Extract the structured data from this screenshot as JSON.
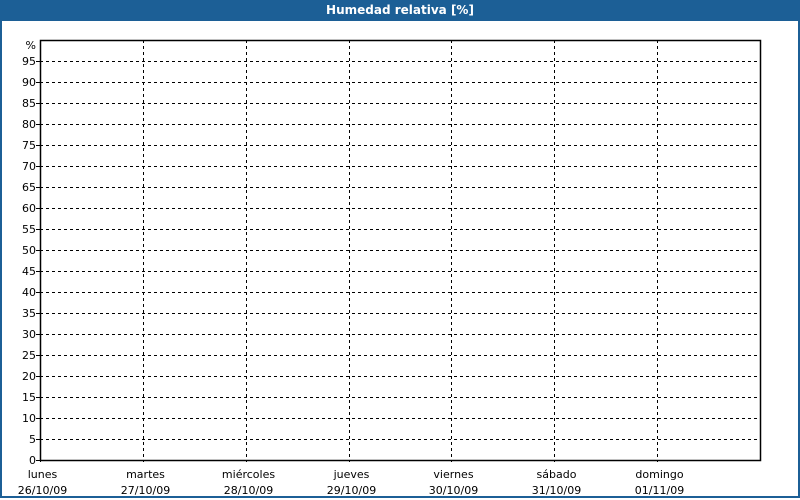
{
  "window": {
    "title": "Humedad relativa [%]",
    "title_bar_color": "#1c5f96"
  },
  "chart_data": {
    "type": "line",
    "title": "Humedad relativa [%]",
    "ylabel": "%",
    "ylim": [
      0,
      100
    ],
    "yticks": [
      0,
      5,
      10,
      15,
      20,
      25,
      30,
      35,
      40,
      45,
      50,
      55,
      60,
      65,
      70,
      75,
      80,
      85,
      90,
      95
    ],
    "xlim": [
      "26/10/09",
      "02/11/09"
    ],
    "xticks": [
      {
        "day": "lunes",
        "date": "26/10/09"
      },
      {
        "day": "martes",
        "date": "27/10/09"
      },
      {
        "day": "miércoles",
        "date": "28/10/09"
      },
      {
        "day": "jueves",
        "date": "29/10/09"
      },
      {
        "day": "viernes",
        "date": "30/10/09"
      },
      {
        "day": "sábado",
        "date": "31/10/09"
      },
      {
        "day": "domingo",
        "date": "01/11/09"
      }
    ],
    "grid": true,
    "grid_style": "dashed",
    "series": []
  }
}
